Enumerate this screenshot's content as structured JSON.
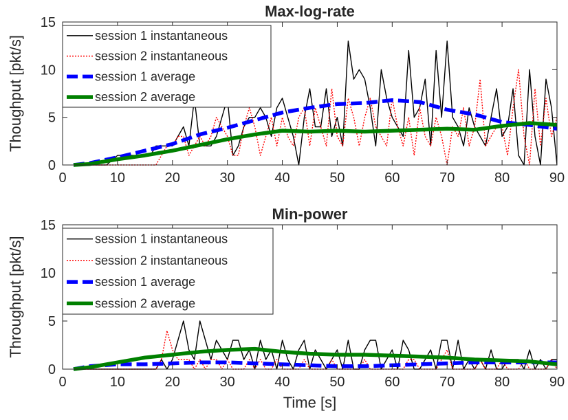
{
  "chart_data": [
    {
      "type": "line",
      "title": "Max-log-rate",
      "xlabel": "",
      "ylabel": "Thoughput [pkt/s]",
      "xlim": [
        0,
        90
      ],
      "ylim": [
        0,
        15
      ],
      "xticks": [
        0,
        10,
        20,
        30,
        40,
        50,
        60,
        70,
        80,
        90
      ],
      "yticks": [
        0,
        5,
        10,
        15
      ],
      "grid": false,
      "legend_position": "top-left",
      "series": [
        {
          "name": "session 1 instantaneous",
          "style": "solid-thin",
          "color": "#000000",
          "x": [
            2,
            4,
            6,
            8,
            10,
            12,
            14,
            16,
            17,
            18,
            19,
            20,
            21,
            22,
            23,
            24,
            25,
            26,
            27,
            28,
            29,
            30,
            31,
            32,
            33,
            34,
            35,
            36,
            37,
            38,
            39,
            40,
            41,
            42,
            43,
            44,
            45,
            46,
            47,
            48,
            49,
            50,
            51,
            52,
            53,
            54,
            55,
            56,
            57,
            58,
            59,
            60,
            61,
            62,
            63,
            64,
            65,
            66,
            67,
            68,
            69,
            70,
            71,
            72,
            73,
            74,
            75,
            76,
            77,
            78,
            79,
            80,
            81,
            82,
            83,
            84,
            85,
            86,
            87,
            88,
            89,
            90
          ],
          "y": [
            0,
            0,
            0,
            0,
            1,
            1,
            1,
            1,
            2,
            2,
            2,
            2,
            3,
            4,
            2,
            7,
            2,
            2,
            2,
            3,
            5,
            7,
            1,
            2,
            4,
            5,
            5,
            6,
            5,
            3,
            6,
            7,
            5,
            3,
            0,
            5,
            8,
            4,
            4,
            8,
            3,
            5,
            2,
            13,
            9,
            10,
            9,
            6,
            2,
            10,
            7,
            5,
            4,
            3,
            12,
            5,
            6,
            9,
            2,
            12,
            5,
            13,
            5,
            4,
            2,
            6,
            4,
            3,
            2,
            5,
            8,
            3,
            4,
            8,
            1,
            0,
            10,
            3,
            0,
            9,
            6,
            0
          ]
        },
        {
          "name": "session 2 instantaneous",
          "style": "dotted",
          "color": "#ff0000",
          "x": [
            2,
            4,
            6,
            8,
            10,
            12,
            14,
            16,
            17,
            18,
            19,
            20,
            21,
            22,
            23,
            24,
            25,
            26,
            27,
            28,
            29,
            30,
            31,
            32,
            33,
            34,
            35,
            36,
            37,
            38,
            39,
            40,
            41,
            42,
            43,
            44,
            45,
            46,
            47,
            48,
            49,
            50,
            51,
            52,
            53,
            54,
            55,
            56,
            57,
            58,
            59,
            60,
            61,
            62,
            63,
            64,
            65,
            66,
            67,
            68,
            69,
            70,
            71,
            72,
            73,
            74,
            75,
            76,
            77,
            78,
            79,
            80,
            81,
            82,
            83,
            84,
            85,
            86,
            87,
            88,
            89,
            90
          ],
          "y": [
            0,
            0,
            0,
            0,
            0,
            0,
            0,
            0,
            0,
            1,
            2,
            2,
            3,
            3,
            1,
            2,
            3,
            2,
            3,
            5,
            4,
            3,
            1,
            1,
            4,
            6,
            4,
            1,
            3,
            5,
            2,
            5,
            3,
            2,
            5,
            6,
            2,
            6,
            4,
            2,
            8,
            3,
            2,
            7,
            5,
            2,
            5,
            7,
            4,
            3,
            2,
            7,
            4,
            2,
            5,
            1,
            6,
            3,
            2,
            5,
            3,
            0,
            4,
            3,
            6,
            2,
            4,
            9,
            2,
            3,
            4,
            4,
            1,
            6,
            10,
            3,
            0,
            8,
            2,
            7,
            3,
            5
          ]
        },
        {
          "name": "session 1 average",
          "style": "dashed-thick",
          "color": "#0000ff",
          "x": [
            2,
            5,
            10,
            15,
            20,
            25,
            30,
            35,
            40,
            45,
            50,
            55,
            60,
            65,
            70,
            75,
            80,
            85,
            90
          ],
          "y": [
            0,
            0.2,
            0.8,
            1.5,
            2.2,
            3.2,
            3.9,
            4.7,
            5.5,
            6.0,
            6.4,
            6.5,
            6.8,
            6.6,
            5.8,
            5.3,
            4.5,
            4.2,
            3.8
          ]
        },
        {
          "name": "session 2 average",
          "style": "solid-thick",
          "color": "#008000",
          "x": [
            2,
            5,
            10,
            15,
            20,
            25,
            30,
            35,
            40,
            45,
            50,
            55,
            60,
            65,
            70,
            75,
            80,
            85,
            90
          ],
          "y": [
            0,
            0.1,
            0.6,
            1.0,
            1.5,
            2.1,
            2.7,
            3.2,
            3.6,
            3.5,
            3.6,
            3.5,
            3.6,
            3.7,
            3.8,
            3.7,
            4.1,
            4.4,
            4.2
          ]
        }
      ]
    },
    {
      "type": "line",
      "title": "Min-power",
      "xlabel": "Time [s]",
      "ylabel": "Throughput [pkt/s]",
      "xlim": [
        0,
        90
      ],
      "ylim": [
        0,
        15
      ],
      "xticks": [
        0,
        10,
        20,
        30,
        40,
        50,
        60,
        70,
        80,
        90
      ],
      "yticks": [
        0,
        5,
        10,
        15
      ],
      "grid": false,
      "legend_position": "top-left",
      "series": [
        {
          "name": "session 1 instantaneous",
          "style": "solid-thin",
          "color": "#000000",
          "x": [
            2,
            4,
            6,
            8,
            10,
            12,
            14,
            16,
            17,
            18,
            19,
            20,
            21,
            22,
            23,
            24,
            25,
            26,
            27,
            28,
            29,
            30,
            31,
            32,
            33,
            34,
            35,
            36,
            37,
            38,
            39,
            40,
            41,
            42,
            43,
            44,
            45,
            46,
            47,
            48,
            49,
            50,
            51,
            52,
            53,
            54,
            55,
            56,
            57,
            58,
            59,
            60,
            61,
            62,
            63,
            64,
            65,
            66,
            67,
            68,
            69,
            70,
            71,
            72,
            73,
            74,
            75,
            76,
            77,
            78,
            79,
            80,
            81,
            82,
            83,
            84,
            85,
            86,
            87,
            88,
            89,
            90
          ],
          "y": [
            0,
            0,
            0,
            0,
            0,
            0,
            0,
            0,
            0,
            1,
            0,
            1,
            3,
            5,
            2,
            1,
            5,
            3,
            1,
            3,
            2,
            1,
            3,
            3,
            1,
            2,
            0,
            3,
            1,
            2,
            0,
            3,
            1,
            0,
            2,
            3,
            0,
            2,
            1,
            0,
            1,
            2,
            0,
            3,
            0,
            0,
            2,
            3,
            3,
            0,
            1,
            2,
            0,
            3,
            2,
            0,
            0,
            1,
            2,
            0,
            3,
            3,
            0,
            3,
            0,
            1,
            0,
            1,
            0,
            2,
            0,
            0,
            1,
            1,
            1,
            0,
            2,
            0,
            1,
            0,
            1,
            1
          ]
        },
        {
          "name": "session 2 instantaneous",
          "style": "dotted",
          "color": "#ff0000",
          "x": [
            2,
            4,
            6,
            8,
            10,
            12,
            14,
            16,
            17,
            18,
            19,
            20,
            21,
            22,
            23,
            24,
            25,
            26,
            27,
            28,
            29,
            30,
            31,
            32,
            33,
            34,
            35,
            36,
            37,
            38,
            39,
            40,
            41,
            42,
            43,
            44,
            45,
            46,
            47,
            48,
            49,
            50,
            51,
            52,
            53,
            54,
            55,
            56,
            57,
            58,
            59,
            60,
            61,
            62,
            63,
            64,
            65,
            66,
            67,
            68,
            69,
            70,
            71,
            72,
            73,
            74,
            75,
            76,
            77,
            78,
            79,
            80,
            81,
            82,
            83,
            84,
            85,
            86,
            87,
            88,
            89,
            90
          ],
          "y": [
            0,
            0,
            0,
            0,
            0,
            0,
            0,
            0,
            0,
            1,
            4,
            2,
            1,
            1,
            1,
            0,
            1,
            0,
            1,
            1,
            0,
            1,
            0,
            0,
            0,
            1,
            0,
            1,
            0,
            0,
            1,
            0,
            0,
            0,
            0,
            1,
            0,
            0,
            0,
            0,
            1,
            0,
            0,
            0,
            0,
            0,
            1,
            0,
            0,
            0,
            0,
            0,
            0,
            0,
            1,
            1,
            0,
            0,
            0,
            0,
            1,
            2,
            0,
            0,
            0,
            0,
            0,
            1,
            0,
            0,
            0,
            1,
            0,
            0,
            0,
            1,
            0,
            0,
            0,
            0,
            1,
            0
          ]
        },
        {
          "name": "session 1 average",
          "style": "dashed-thick",
          "color": "#0000ff",
          "x": [
            2,
            5,
            10,
            15,
            20,
            25,
            30,
            35,
            40,
            45,
            50,
            55,
            60,
            65,
            70,
            75,
            80,
            85,
            90
          ],
          "y": [
            0,
            0.3,
            0.5,
            0.5,
            0.6,
            0.7,
            0.7,
            0.6,
            0.5,
            0.4,
            0.3,
            0.3,
            0.4,
            0.5,
            0.6,
            0.7,
            0.7,
            0.7,
            0.7
          ]
        },
        {
          "name": "session 2 average",
          "style": "solid-thick",
          "color": "#008000",
          "x": [
            2,
            5,
            10,
            15,
            20,
            25,
            30,
            35,
            40,
            45,
            50,
            55,
            60,
            65,
            70,
            75,
            80,
            85,
            90
          ],
          "y": [
            0,
            0.2,
            0.7,
            1.2,
            1.5,
            1.8,
            2.0,
            2.1,
            1.8,
            1.6,
            1.5,
            1.5,
            1.4,
            1.3,
            1.2,
            1.0,
            0.9,
            0.8,
            0.5
          ]
        }
      ]
    }
  ]
}
